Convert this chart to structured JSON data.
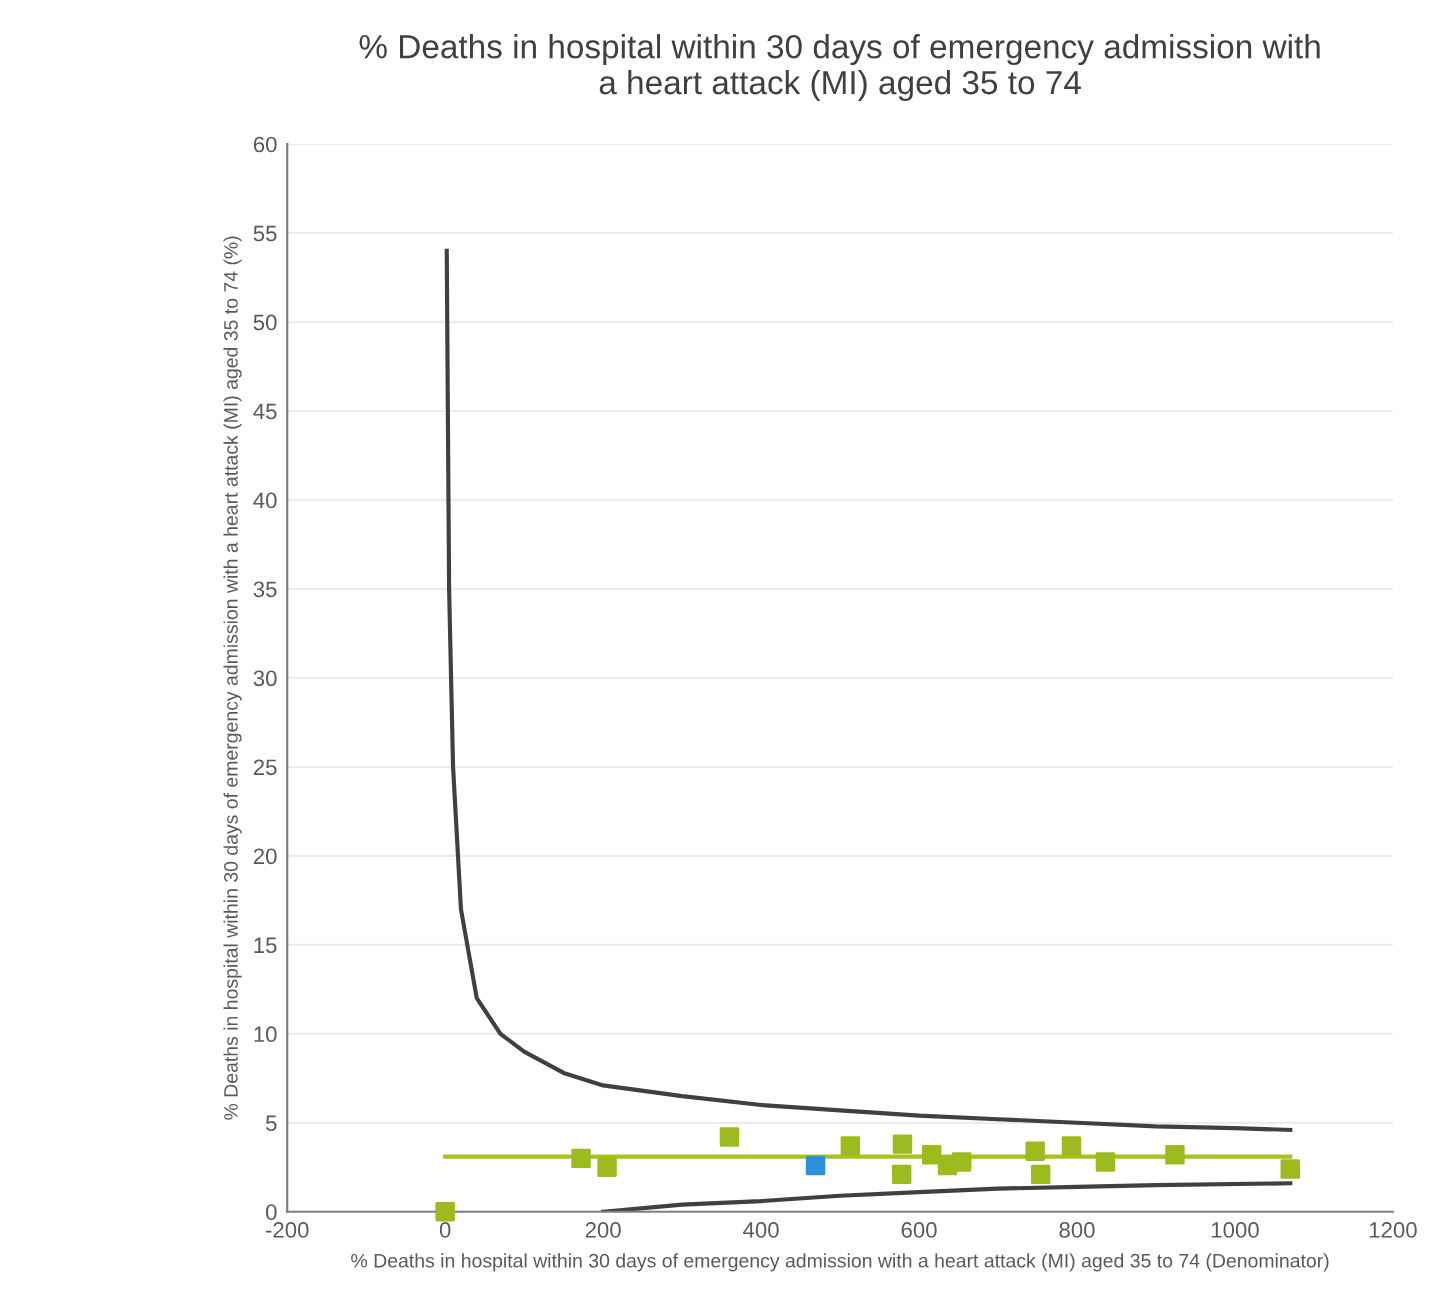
{
  "chart_data": {
    "type": "scatter",
    "title": "% Deaths in hospital within 30 days of emergency admission with\na heart attack (MI) aged 35 to 74",
    "xlabel": "% Deaths in hospital within 30 days of emergency admission with a heart attack (MI) aged 35 to 74 (Denominator)",
    "ylabel": "% Deaths in hospital within 30 days of emergency admission with a heart attack (MI) aged 35 to 74 (%)",
    "xlim": [
      -200,
      1200
    ],
    "xticks": [
      -200,
      0,
      200,
      400,
      600,
      800,
      1000,
      1200
    ],
    "ylim": [
      0,
      60
    ],
    "yticks": [
      0,
      5,
      10,
      15,
      20,
      25,
      30,
      35,
      40,
      45,
      50,
      55,
      60
    ],
    "grid": "y",
    "legend": false,
    "series": [
      {
        "type": "line",
        "marker": "none",
        "color": "#404040",
        "x": [
          2,
          5,
          10,
          20,
          40,
          70,
          100,
          150,
          200,
          300,
          400,
          500,
          600,
          700,
          800,
          900,
          1000,
          1070
        ],
        "values": [
          54,
          35,
          25,
          17,
          12,
          10,
          9,
          7.8,
          7.1,
          6.5,
          6.0,
          5.7,
          5.4,
          5.2,
          5.0,
          4.8,
          4.7,
          4.6
        ]
      },
      {
        "type": "line",
        "marker": "none",
        "color": "#404040",
        "x": [
          200,
          300,
          400,
          500,
          600,
          700,
          800,
          900,
          1070
        ],
        "values": [
          0,
          0.4,
          0.6,
          0.9,
          1.1,
          1.3,
          1.4,
          1.5,
          1.6
        ]
      },
      {
        "type": "line",
        "marker": "none",
        "color": "#a6c31a",
        "x": [
          0,
          1070
        ],
        "values": [
          3.1,
          3.1
        ]
      },
      {
        "marker": "square",
        "color": "#9dbb1f",
        "x": [
          0,
          172,
          205,
          360,
          513,
          579,
          578,
          616,
          636,
          654,
          747,
          754,
          793,
          836,
          924,
          1070
        ],
        "values": [
          0,
          3.0,
          2.5,
          4.2,
          3.7,
          3.8,
          2.1,
          3.2,
          2.6,
          2.8,
          3.4,
          2.1,
          3.7,
          2.8,
          3.2,
          2.4
        ]
      },
      {
        "marker": "square",
        "color": "#2f8fd8",
        "x": [
          469
        ],
        "values": [
          2.6
        ]
      }
    ]
  }
}
